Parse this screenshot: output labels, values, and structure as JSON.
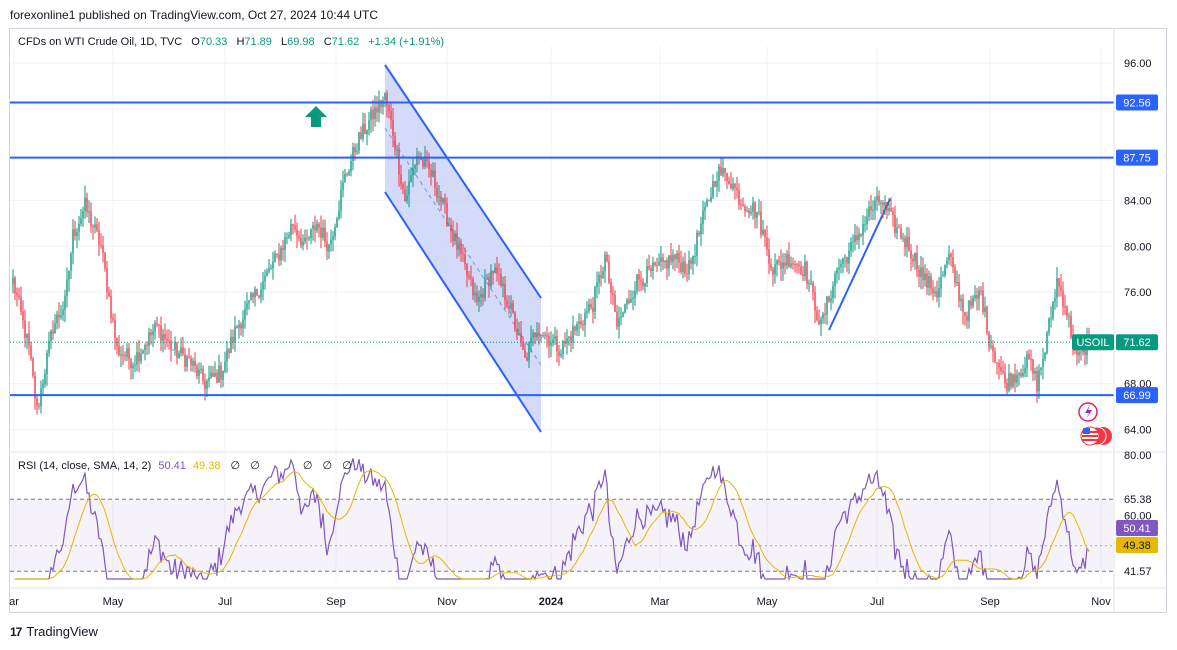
{
  "header": {
    "published": "forexonline1 published on TradingView.com, Oct 27, 2024 10:44 UTC"
  },
  "legend": {
    "symbol": "CFDs on WTI Crude Oil, 1D, TVC",
    "open_label": "O",
    "open": "70.33",
    "high_label": "H",
    "high": "71.89",
    "low_label": "L",
    "low": "69.98",
    "close_label": "C",
    "close": "71.62",
    "change": "+1.34 (+1.91%)"
  },
  "rsi_legend": {
    "label": "RSI (14, close, SMA, 14, 2)",
    "value": "50.41",
    "sma": "49.38",
    "eyes": [
      "∅",
      "∅",
      "∅",
      "∅",
      "∅",
      "∅"
    ]
  },
  "footer": {
    "brand": "TradingView",
    "logo_text": "17"
  },
  "colors": {
    "up": "#089981",
    "down": "#f23645",
    "level": "#2962ff",
    "rsi": "#7e57c2",
    "rsi_sma": "#e6b800",
    "channel_fill": "#c5cff7"
  },
  "icons": {
    "arrow": "arrow-up-icon",
    "flash": "flash-icon",
    "flag": "us-flag-icon"
  },
  "chart_data": [
    {
      "type": "candlestick",
      "title": "",
      "price_axis": {
        "ylim": [
          62.2,
          97.5
        ],
        "ticks": [
          "96.00",
          "84.00",
          "80.00",
          "76.00",
          "68.00",
          "64.00"
        ]
      },
      "time_axis": {
        "labels": [
          "ar",
          "May",
          "Jul",
          "Sep",
          "Nov",
          "2024",
          "Mar",
          "May",
          "Jul",
          "Sep",
          "Nov"
        ]
      },
      "levels": [
        {
          "value": 92.56,
          "label": "92.56"
        },
        {
          "value": 87.75,
          "label": "87.75"
        },
        {
          "value": 66.99,
          "label": "66.99"
        }
      ],
      "last_price": {
        "value": 71.62,
        "label": "71.62",
        "symbol": "USOIL"
      },
      "anchors": [
        {
          "t": 0,
          "p": 77
        },
        {
          "t": 8,
          "p": 71
        },
        {
          "t": 12,
          "p": 65.6
        },
        {
          "t": 20,
          "p": 73
        },
        {
          "t": 26,
          "p": 75
        },
        {
          "t": 30,
          "p": 81
        },
        {
          "t": 36,
          "p": 83.5
        },
        {
          "t": 44,
          "p": 80
        },
        {
          "t": 52,
          "p": 71
        },
        {
          "t": 60,
          "p": 70
        },
        {
          "t": 72,
          "p": 73
        },
        {
          "t": 80,
          "p": 71
        },
        {
          "t": 88,
          "p": 70
        },
        {
          "t": 96,
          "p": 68
        },
        {
          "t": 104,
          "p": 69
        },
        {
          "t": 112,
          "p": 73
        },
        {
          "t": 122,
          "p": 76
        },
        {
          "t": 132,
          "p": 79
        },
        {
          "t": 140,
          "p": 82
        },
        {
          "t": 146,
          "p": 80
        },
        {
          "t": 152,
          "p": 82
        },
        {
          "t": 158,
          "p": 80
        },
        {
          "t": 166,
          "p": 86
        },
        {
          "t": 172,
          "p": 89
        },
        {
          "t": 180,
          "p": 91.5
        },
        {
          "t": 186,
          "p": 93
        },
        {
          "t": 190,
          "p": 90
        },
        {
          "t": 196,
          "p": 84
        },
        {
          "t": 202,
          "p": 88
        },
        {
          "t": 210,
          "p": 86
        },
        {
          "t": 218,
          "p": 82
        },
        {
          "t": 226,
          "p": 78
        },
        {
          "t": 232,
          "p": 75
        },
        {
          "t": 240,
          "p": 78
        },
        {
          "t": 248,
          "p": 75
        },
        {
          "t": 256,
          "p": 70
        },
        {
          "t": 262,
          "p": 73
        },
        {
          "t": 268,
          "p": 72
        },
        {
          "t": 274,
          "p": 71
        },
        {
          "t": 282,
          "p": 73
        },
        {
          "t": 290,
          "p": 75
        },
        {
          "t": 296,
          "p": 79
        },
        {
          "t": 302,
          "p": 73
        },
        {
          "t": 312,
          "p": 77
        },
        {
          "t": 322,
          "p": 78
        },
        {
          "t": 330,
          "p": 79
        },
        {
          "t": 338,
          "p": 78
        },
        {
          "t": 346,
          "p": 83
        },
        {
          "t": 352,
          "p": 86.5
        },
        {
          "t": 358,
          "p": 86
        },
        {
          "t": 364,
          "p": 84
        },
        {
          "t": 372,
          "p": 83
        },
        {
          "t": 380,
          "p": 78
        },
        {
          "t": 388,
          "p": 79
        },
        {
          "t": 396,
          "p": 78
        },
        {
          "t": 404,
          "p": 73
        },
        {
          "t": 412,
          "p": 78
        },
        {
          "t": 420,
          "p": 80
        },
        {
          "t": 428,
          "p": 83
        },
        {
          "t": 434,
          "p": 84
        },
        {
          "t": 440,
          "p": 82
        },
        {
          "t": 448,
          "p": 80
        },
        {
          "t": 456,
          "p": 77
        },
        {
          "t": 462,
          "p": 76
        },
        {
          "t": 468,
          "p": 79
        },
        {
          "t": 476,
          "p": 74
        },
        {
          "t": 484,
          "p": 76
        },
        {
          "t": 488,
          "p": 72
        },
        {
          "t": 496,
          "p": 68
        },
        {
          "t": 502,
          "p": 69
        },
        {
          "t": 508,
          "p": 70
        },
        {
          "t": 512,
          "p": 68
        },
        {
          "t": 516,
          "p": 71
        },
        {
          "t": 522,
          "p": 77
        },
        {
          "t": 526,
          "p": 75
        },
        {
          "t": 532,
          "p": 70
        },
        {
          "t": 538,
          "p": 71.6
        }
      ]
    },
    {
      "type": "line",
      "title": "RSI (14, close, SMA, 14, 2)",
      "ylim": [
        38,
        80
      ],
      "ticks": [
        "80.00",
        "60.00"
      ],
      "bands": [
        65.38,
        41.57
      ],
      "band_labels": [
        "65.38",
        "41.57"
      ],
      "midline": 50,
      "last": [
        {
          "value": 50.41,
          "label": "50.41"
        },
        {
          "value": 49.38,
          "label": "49.38"
        }
      ]
    }
  ]
}
